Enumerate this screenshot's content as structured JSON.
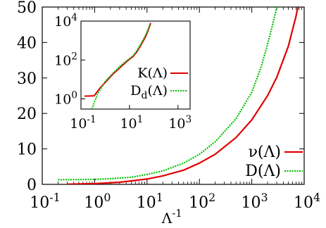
{
  "chart_data": [
    {
      "type": "line",
      "xscale": "log",
      "xlim": [
        0.1,
        10000
      ],
      "ylim": [
        0,
        50
      ],
      "xlabel": "Λ⁻¹",
      "ylabel": "",
      "x_ticks": [
        {
          "value": 0.1,
          "base": "10",
          "exp": "-1"
        },
        {
          "value": 1,
          "base": "10",
          "exp": "0"
        },
        {
          "value": 10,
          "base": "10",
          "exp": "1"
        },
        {
          "value": 100,
          "base": "10",
          "exp": "2"
        },
        {
          "value": 1000,
          "base": "10",
          "exp": "3"
        },
        {
          "value": 10000,
          "base": "10",
          "exp": "4"
        }
      ],
      "y_ticks": [
        "0",
        "10",
        "20",
        "30",
        "40",
        "50"
      ],
      "legend_position": "bottom-right",
      "grid": false,
      "series": [
        {
          "name": "ν(Λ)",
          "color": "#e00000",
          "style": "solid",
          "points": [
            [
              0.3,
              0.05
            ],
            [
              1,
              0.2
            ],
            [
              3,
              0.6
            ],
            [
              10,
              1.5
            ],
            [
              20,
              2.4
            ],
            [
              50,
              4.0
            ],
            [
              100,
              6.0
            ],
            [
              200,
              8.5
            ],
            [
              500,
              13.2
            ],
            [
              1000,
              18.2
            ],
            [
              2000,
              25.0
            ],
            [
              3000,
              30.2
            ],
            [
              5000,
              39.0
            ],
            [
              7000,
              47.5
            ],
            [
              7600,
              50
            ]
          ]
        },
        {
          "name": "D(Λ)",
          "color": "#00c000",
          "style": "dotted",
          "points": [
            [
              0.2,
              1.3
            ],
            [
              1,
              1.4
            ],
            [
              2,
              1.6
            ],
            [
              5,
              2.0
            ],
            [
              10,
              2.8
            ],
            [
              20,
              3.8
            ],
            [
              50,
              6.0
            ],
            [
              100,
              8.5
            ],
            [
              200,
              12.0
            ],
            [
              500,
              18.5
            ],
            [
              1000,
              26.0
            ],
            [
              1500,
              33.0
            ],
            [
              2000,
              39.5
            ],
            [
              2500,
              45.0
            ],
            [
              3000,
              50
            ]
          ]
        }
      ]
    },
    {
      "type": "line",
      "inset": true,
      "xscale": "log",
      "yscale": "log",
      "xlim": [
        0.1,
        100
      ],
      "ylim": [
        0.3,
        10000
      ],
      "x_ticks": [
        {
          "value": 0.1,
          "base": "10",
          "exp": "-1"
        },
        {
          "value": 10,
          "base": "10",
          "exp": "1"
        },
        {
          "value": 1000,
          "base": "10",
          "exp": "3"
        }
      ],
      "y_ticks": [
        {
          "value": 1,
          "base": "10",
          "exp": "0"
        },
        {
          "value": 100,
          "base": "10",
          "exp": "2"
        },
        {
          "value": 10000,
          "base": "10",
          "exp": "4"
        }
      ],
      "legend_position": "bottom-right",
      "grid": false,
      "series": [
        {
          "name_base": "K(Λ)",
          "name_sub": "",
          "color": "#e00000",
          "style": "solid",
          "points": [
            [
              0.14,
              1.4
            ],
            [
              0.2,
              1.4
            ],
            [
              0.35,
              1.45
            ],
            [
              0.6,
              3.5
            ],
            [
              1,
              7
            ],
            [
              2,
              18
            ],
            [
              4,
              40
            ],
            [
              7,
              75
            ],
            [
              10,
              110
            ],
            [
              14,
              150
            ],
            [
              20,
              260
            ],
            [
              30,
              600
            ],
            [
              45,
              1500
            ],
            [
              60,
              3500
            ],
            [
              75,
              8000
            ]
          ]
        },
        {
          "name_base": "D",
          "name_sub": "d",
          "name_tail": "(Λ)",
          "color": "#00c000",
          "style": "dotted",
          "points": [
            [
              0.28,
              0.3
            ],
            [
              0.5,
              2
            ],
            [
              1,
              8
            ],
            [
              2,
              20
            ],
            [
              4,
              48
            ],
            [
              7,
              85
            ],
            [
              10,
              120
            ],
            [
              15,
              180
            ],
            [
              20,
              300
            ],
            [
              30,
              700
            ],
            [
              45,
              1800
            ],
            [
              60,
              4000
            ],
            [
              70,
              7000
            ]
          ]
        }
      ]
    }
  ]
}
